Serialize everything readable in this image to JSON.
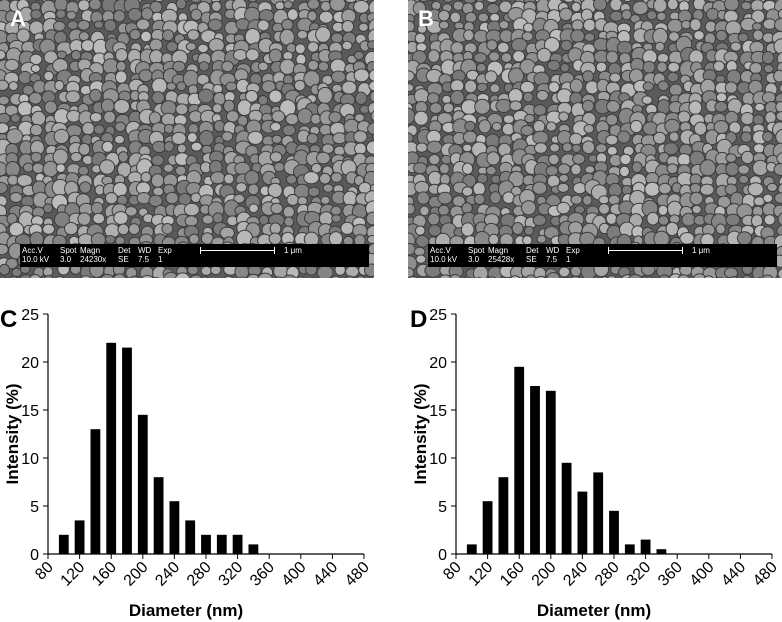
{
  "panels": {
    "a": {
      "letter": "A",
      "sem": {
        "acc_label": "Acc.V",
        "acc_value": "10.0 kV",
        "spot_label": "Spot",
        "spot_value": "3.0",
        "magn_label": "Magn",
        "magn_value": "24230x",
        "det_label": "Det",
        "det_value": "SE",
        "wd_label": "WD",
        "wd_value": "7.5",
        "exp_label": "Exp",
        "exp_value": "1",
        "scale": "1 μm"
      }
    },
    "b": {
      "letter": "B",
      "sem": {
        "acc_label": "Acc.V",
        "acc_value": "10.0 kV",
        "spot_label": "Spot",
        "spot_value": "3.0",
        "magn_label": "Magn",
        "magn_value": "25428x",
        "det_label": "Det",
        "det_value": "SE",
        "wd_label": "WD",
        "wd_value": "7.5",
        "exp_label": "Exp",
        "exp_value": "1",
        "scale": "1 μm"
      }
    }
  },
  "chart_data": [
    {
      "panel": "C",
      "type": "bar",
      "xlabel": "Diameter (nm)",
      "ylabel": "Intensity (%)",
      "x": [
        100,
        120,
        140,
        160,
        180,
        200,
        220,
        240,
        260,
        280,
        300,
        320,
        340
      ],
      "values": [
        2,
        3.5,
        13,
        22,
        21.5,
        14.5,
        8,
        5.5,
        3.5,
        2,
        2,
        2,
        1
      ],
      "xticks": [
        80,
        120,
        160,
        200,
        240,
        280,
        320,
        360,
        400,
        440,
        480
      ],
      "yticks": [
        0,
        5,
        10,
        15,
        20,
        25
      ],
      "xlim": [
        80,
        480
      ],
      "ylim": [
        0,
        25
      ],
      "colors": {
        "bar": "#000000"
      }
    },
    {
      "panel": "D",
      "type": "bar",
      "xlabel": "Diameter (nm)",
      "ylabel": "Intensity (%)",
      "x": [
        100,
        120,
        140,
        160,
        180,
        200,
        220,
        240,
        260,
        280,
        300,
        320,
        340
      ],
      "values": [
        1,
        5.5,
        8,
        19.5,
        17.5,
        17,
        9.5,
        6.5,
        8.5,
        4.5,
        1,
        1.5,
        0.5
      ],
      "xticks": [
        80,
        120,
        160,
        200,
        240,
        280,
        320,
        360,
        400,
        440,
        480
      ],
      "yticks": [
        0,
        5,
        10,
        15,
        20,
        25
      ],
      "xlim": [
        80,
        480
      ],
      "ylim": [
        0,
        25
      ],
      "colors": {
        "bar": "#000000"
      }
    }
  ]
}
